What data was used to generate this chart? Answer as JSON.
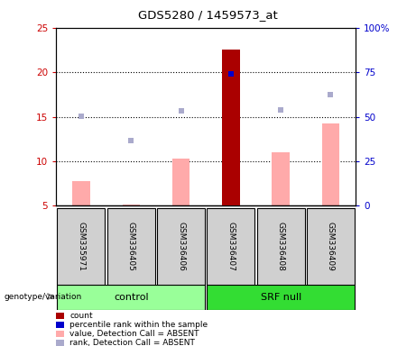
{
  "title": "GDS5280 / 1459573_at",
  "samples": [
    "GSM335971",
    "GSM336405",
    "GSM336406",
    "GSM336407",
    "GSM336408",
    "GSM336409"
  ],
  "groups": [
    "control",
    "control",
    "control",
    "SRF null",
    "SRF null",
    "SRF null"
  ],
  "x_positions": [
    1,
    2,
    3,
    4,
    5,
    6
  ],
  "count_values": [
    null,
    null,
    null,
    22.5,
    null,
    null
  ],
  "count_color": "#aa0000",
  "percentile_values": [
    null,
    null,
    null,
    19.8,
    null,
    null
  ],
  "percentile_color": "#0000cc",
  "absent_value_bars": [
    7.8,
    5.2,
    10.3,
    null,
    11.0,
    14.3
  ],
  "absent_value_color": "#ffaaaa",
  "absent_rank_dots": [
    15.1,
    12.3,
    15.7,
    null,
    15.8,
    17.5
  ],
  "absent_rank_color": "#aaaacc",
  "ylim": [
    5,
    25
  ],
  "y_ticks": [
    5,
    10,
    15,
    20,
    25
  ],
  "y2_ticks_labels": [
    "0",
    "25",
    "50",
    "75",
    "100%"
  ],
  "y2_tick_positions": [
    5,
    10,
    15,
    20,
    25
  ],
  "y_tick_color": "#cc0000",
  "y2_tick_color": "#0000cc",
  "dotted_lines": [
    10,
    15,
    20
  ],
  "control_color": "#99ff99",
  "srf_color": "#33dd33",
  "bar_width": 0.35,
  "legend_items": [
    {
      "label": "count",
      "color": "#aa0000"
    },
    {
      "label": "percentile rank within the sample",
      "color": "#0000cc"
    },
    {
      "label": "value, Detection Call = ABSENT",
      "color": "#ffaaaa"
    },
    {
      "label": "rank, Detection Call = ABSENT",
      "color": "#aaaacc"
    }
  ]
}
